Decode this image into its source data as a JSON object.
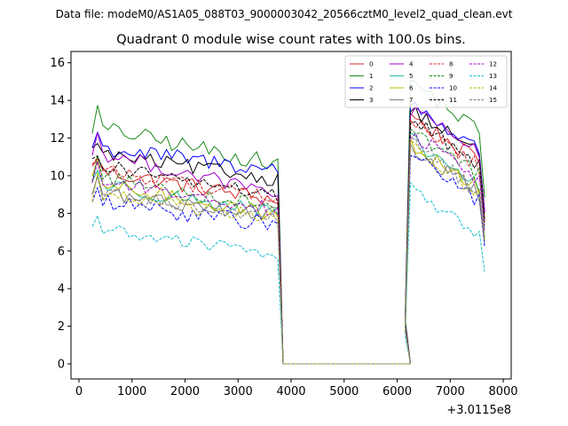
{
  "suptitle": "Data file: modeM0/AS1A05_088T03_9000003042_20566cztM0_level2_quad_clean.evt",
  "chart_data": {
    "type": "line",
    "title": "Quadrant 0 module wise count rates with 100.0s bins.",
    "xlabel": "",
    "ylabel": "",
    "x_offset_label": "+3.0115e8",
    "xlim": [
      -150,
      8150
    ],
    "ylim": [
      -0.8,
      16.6
    ],
    "xticks": [
      0,
      1000,
      2000,
      3000,
      4000,
      5000,
      6000,
      7000,
      8000
    ],
    "xtick_labels": [
      "0",
      "1000",
      "2000",
      "3000",
      "4000",
      "5000",
      "6000",
      "7000",
      "8000"
    ],
    "yticks": [
      0,
      2,
      4,
      6,
      8,
      10,
      12,
      14,
      16
    ],
    "ytick_labels": [
      "0",
      "2",
      "4",
      "6",
      "8",
      "10",
      "12",
      "14",
      "16"
    ],
    "legend_position": "top-right",
    "legend_columns": 4,
    "segments": [
      {
        "x_start": 250,
        "x_step": 100,
        "points": 36
      },
      {
        "x_start": 3850,
        "x_step": 100,
        "points": 25,
        "value": 0.0
      },
      {
        "x_start": 6150,
        "x_step": 100,
        "points": 16
      }
    ],
    "series": [
      {
        "name": "0",
        "color": "#d62728",
        "dash": "solid",
        "level1": 10.3,
        "slope1": -1.6,
        "level3": 13.2,
        "slope3": -2.7,
        "noise": 0.45
      },
      {
        "name": "1",
        "color": "#1a8a1a",
        "dash": "solid",
        "level1": 12.6,
        "slope1": -2.0,
        "level3": 15.1,
        "slope3": -3.0,
        "noise": 0.45
      },
      {
        "name": "2",
        "color": "#0000ff",
        "dash": "solid",
        "level1": 11.5,
        "slope1": -1.2,
        "level3": 13.9,
        "slope3": -2.8,
        "noise": 0.45
      },
      {
        "name": "3",
        "color": "#000000",
        "dash": "solid",
        "level1": 11.2,
        "slope1": -1.4,
        "level3": 13.6,
        "slope3": -2.6,
        "noise": 0.4
      },
      {
        "name": "4",
        "color": "#a000c8",
        "dash": "solid",
        "level1": 11.3,
        "slope1": -2.3,
        "level3": 13.5,
        "slope3": -2.5,
        "noise": 0.4
      },
      {
        "name": "5",
        "color": "#1fbf9f",
        "dash": "solid",
        "level1": 9.6,
        "slope1": -1.6,
        "level3": 11.9,
        "slope3": -2.7,
        "noise": 0.4
      },
      {
        "name": "6",
        "color": "#b8b800",
        "dash": "solid",
        "level1": 9.6,
        "slope1": -1.7,
        "level3": 11.7,
        "slope3": -2.6,
        "noise": 0.4
      },
      {
        "name": "7",
        "color": "#808080",
        "dash": "solid",
        "level1": 9.1,
        "slope1": -1.2,
        "level3": 11.5,
        "slope3": -2.7,
        "noise": 0.4
      },
      {
        "name": "8",
        "color": "#d62728",
        "dash": "dashed",
        "level1": 10.4,
        "slope1": -1.6,
        "level3": 12.9,
        "slope3": -2.6,
        "noise": 0.4
      },
      {
        "name": "9",
        "color": "#1a8a1a",
        "dash": "dashed",
        "level1": 10.0,
        "slope1": -1.7,
        "level3": 12.5,
        "slope3": -2.6,
        "noise": 0.4
      },
      {
        "name": "10",
        "color": "#0000ff",
        "dash": "dashed",
        "level1": 8.6,
        "slope1": -1.2,
        "level3": 11.2,
        "slope3": -2.7,
        "noise": 0.45
      },
      {
        "name": "11",
        "color": "#000000",
        "dash": "dashed",
        "level1": 10.6,
        "slope1": -1.7,
        "level3": 13.0,
        "slope3": -2.6,
        "noise": 0.4
      },
      {
        "name": "12",
        "color": "#a000c8",
        "dash": "dashed",
        "level1": 9.8,
        "slope1": -1.6,
        "level3": 12.3,
        "slope3": -2.7,
        "noise": 0.4
      },
      {
        "name": "13",
        "color": "#17becf",
        "dash": "dashed",
        "level1": 7.2,
        "slope1": -1.4,
        "level3": 9.3,
        "slope3": -2.6,
        "noise": 0.35
      },
      {
        "name": "14",
        "color": "#b8b800",
        "dash": "dashed",
        "level1": 9.0,
        "slope1": -1.3,
        "level3": 11.6,
        "slope3": -2.7,
        "noise": 0.4
      },
      {
        "name": "15",
        "color": "#808080",
        "dash": "dashed",
        "level1": 9.1,
        "slope1": -1.4,
        "level3": 11.8,
        "slope3": -2.8,
        "noise": 0.4
      }
    ]
  }
}
